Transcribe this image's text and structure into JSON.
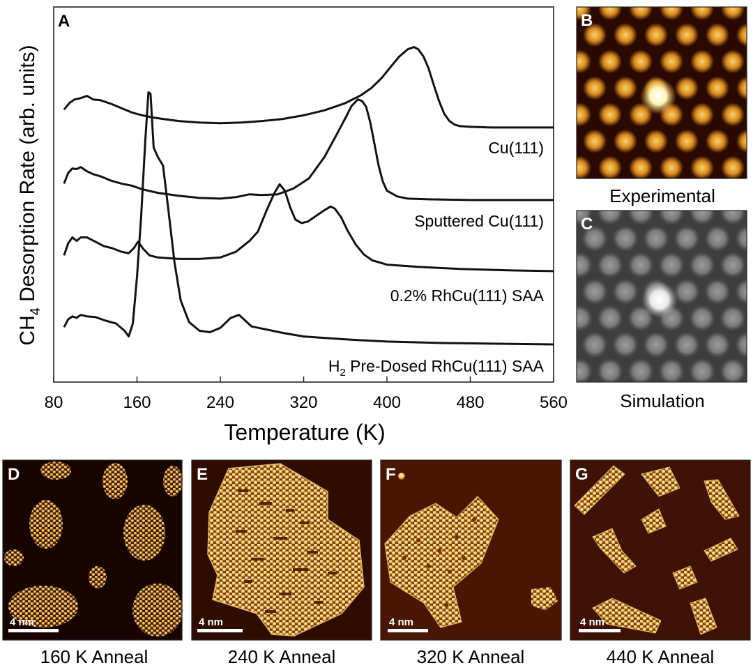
{
  "chart_data": {
    "type": "line",
    "panel_letter": "A",
    "xlabel": "Temperature (K)",
    "ylabel_main": "CH",
    "ylabel_sub": "4",
    "ylabel_rest": " Desorption Rate (arb. units)",
    "xlim": [
      80,
      560
    ],
    "x_ticks": [
      80,
      160,
      240,
      320,
      400,
      480,
      560
    ],
    "y_units": "arb. units",
    "grid": false,
    "legend": "none (labels beneath each trace)",
    "series": [
      {
        "name": "Cu(111)",
        "offset": 3.0,
        "color": "#111111",
        "x": [
          90,
          95,
          100,
          106,
          112,
          118,
          125,
          135,
          145,
          155,
          165,
          175,
          185,
          200,
          220,
          240,
          260,
          280,
          300,
          320,
          340,
          360,
          375,
          385,
          395,
          405,
          412,
          420,
          426,
          430,
          435,
          440,
          445,
          450,
          455,
          460,
          465,
          470,
          480,
          500,
          530,
          560
        ],
        "y": [
          0.28,
          0.37,
          0.42,
          0.44,
          0.47,
          0.42,
          0.41,
          0.36,
          0.3,
          0.24,
          0.2,
          0.17,
          0.15,
          0.12,
          0.1,
          0.09,
          0.1,
          0.12,
          0.15,
          0.2,
          0.27,
          0.37,
          0.48,
          0.58,
          0.72,
          0.9,
          1.02,
          1.12,
          1.15,
          1.12,
          1.02,
          0.85,
          0.62,
          0.4,
          0.22,
          0.12,
          0.07,
          0.05,
          0.04,
          0.03,
          0.03,
          0.03
        ]
      },
      {
        "name": "Sputtered Cu(111)",
        "offset": 2.0,
        "color": "#111111",
        "x": [
          90,
          94,
          98,
          102,
          106,
          112,
          118,
          125,
          135,
          145,
          155,
          165,
          180,
          200,
          220,
          240,
          255,
          268,
          280,
          295,
          310,
          325,
          340,
          352,
          360,
          366,
          372,
          376,
          380,
          384,
          388,
          392,
          396,
          400,
          410,
          420,
          440,
          480,
          520,
          560
        ],
        "y": [
          0.25,
          0.4,
          0.46,
          0.45,
          0.48,
          0.42,
          0.38,
          0.35,
          0.29,
          0.25,
          0.22,
          0.17,
          0.12,
          0.08,
          0.05,
          0.04,
          0.06,
          0.1,
          0.09,
          0.1,
          0.18,
          0.32,
          0.62,
          0.94,
          1.16,
          1.33,
          1.42,
          1.4,
          1.32,
          1.1,
          0.8,
          0.5,
          0.28,
          0.15,
          0.07,
          0.04,
          0.03,
          0.02,
          0.02,
          0.02
        ]
      },
      {
        "name": "0.2% RhCu(111) SAA",
        "offset": 1.0,
        "color": "#111111",
        "x": [
          90,
          94,
          98,
          102,
          106,
          112,
          120,
          128,
          136,
          145,
          152,
          157,
          161,
          166,
          172,
          180,
          200,
          220,
          240,
          255,
          268,
          276,
          284,
          292,
          297,
          302,
          307,
          312,
          318,
          324,
          332,
          340,
          346,
          350,
          356,
          362,
          370,
          378,
          386,
          400,
          430,
          470,
          520,
          560
        ],
        "y": [
          0.25,
          0.42,
          0.5,
          0.45,
          0.5,
          0.5,
          0.44,
          0.38,
          0.35,
          0.3,
          0.28,
          0.35,
          0.44,
          0.34,
          0.25,
          0.22,
          0.2,
          0.2,
          0.22,
          0.3,
          0.45,
          0.58,
          0.86,
          1.12,
          1.24,
          1.15,
          0.92,
          0.75,
          0.7,
          0.72,
          0.8,
          0.88,
          0.93,
          0.9,
          0.78,
          0.6,
          0.4,
          0.26,
          0.18,
          0.12,
          0.09,
          0.06,
          0.04,
          0.03
        ]
      },
      {
        "name": "H2 Pre-Dosed RhCu(111) SAA",
        "offset": 0.0,
        "color": "#111111",
        "x": [
          90,
          94,
          98,
          102,
          106,
          112,
          120,
          130,
          140,
          148,
          152,
          156,
          160,
          164,
          168,
          171,
          173,
          176,
          180,
          185,
          190,
          196,
          202,
          210,
          220,
          230,
          240,
          250,
          258,
          264,
          270,
          280,
          290,
          300,
          320,
          360,
          400,
          450,
          500,
          560
        ],
        "y": [
          0.25,
          0.36,
          0.4,
          0.38,
          0.42,
          0.4,
          0.39,
          0.34,
          0.3,
          0.2,
          0.12,
          0.3,
          0.95,
          1.8,
          2.85,
          3.52,
          3.5,
          2.75,
          2.62,
          2.5,
          1.9,
          1.15,
          0.62,
          0.32,
          0.2,
          0.18,
          0.24,
          0.38,
          0.42,
          0.34,
          0.26,
          0.23,
          0.2,
          0.17,
          0.12,
          0.08,
          0.05,
          0.03,
          0.02,
          0.01
        ]
      }
    ]
  },
  "trace_labels": {
    "cu111": "Cu(111)",
    "sputtered": "Sputtered Cu(111)",
    "rh_saa": "0.2% RhCu(111) SAA",
    "h2_pre": "H",
    "h2_sub": "2",
    "h2_rest": " Pre-Dosed RhCu(111) SAA"
  },
  "panels": {
    "B": {
      "letter": "B",
      "caption": "Experimental"
    },
    "C": {
      "letter": "C",
      "caption": "Simulation"
    },
    "D": {
      "letter": "D",
      "caption": "160 K Anneal",
      "scale": "4 nm"
    },
    "E": {
      "letter": "E",
      "caption": "240 K Anneal",
      "scale": "4 nm"
    },
    "F": {
      "letter": "F",
      "caption": "320 K Anneal",
      "scale": "4 nm"
    },
    "G": {
      "letter": "G",
      "caption": "440 K Anneal",
      "scale": "4 nm"
    }
  },
  "colors": {
    "stm_dark": "#2a0a00",
    "stm_bright": "#f4d486",
    "stm_spot": "#ffffe8",
    "sim_dark": "#3e3e3e",
    "sim_bright": "#a6a6a6",
    "trace": "#111111"
  }
}
